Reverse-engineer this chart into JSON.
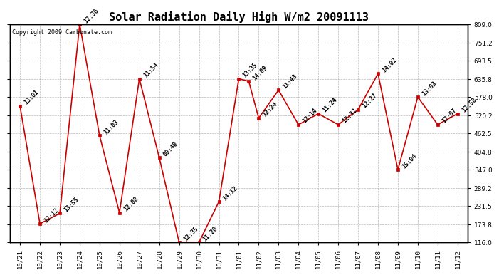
{
  "title": "Solar Radiation Daily High W/m2 20091113",
  "copyright_text": "Copyright 2009 Carbonate.com",
  "line_color": "#cc0000",
  "marker_color": "#cc0000",
  "background_color": "#ffffff",
  "plot_bg_color": "#ffffff",
  "grid_color": "#aaaaaa",
  "x_positions": [
    0,
    1,
    2,
    3,
    4,
    5,
    6,
    7,
    8,
    9,
    10,
    11,
    11.5,
    12,
    13,
    14,
    15,
    16,
    17,
    18,
    19,
    20,
    21,
    22
  ],
  "values": [
    549,
    175,
    208,
    809,
    455,
    210,
    636,
    385,
    116,
    116,
    245,
    636,
    628,
    511,
    600,
    490,
    525,
    490,
    538,
    652,
    347,
    578,
    490,
    525
  ],
  "annotations": [
    "13:01",
    "12:12",
    "13:55",
    "12:36",
    "11:03",
    "12:08",
    "11:54",
    "09:40",
    "12:35",
    "11:20",
    "14:12",
    "13:35",
    "14:09",
    "12:24",
    "11:43",
    "12:14",
    "11:24",
    "12:32",
    "12:27",
    "14:02",
    "15:04",
    "13:03",
    "12:07",
    "12:58"
  ],
  "ylim": [
    116.0,
    809.0
  ],
  "yticks": [
    116.0,
    173.8,
    231.5,
    289.2,
    347.0,
    404.8,
    462.5,
    520.2,
    578.0,
    635.8,
    693.5,
    751.2,
    809.0
  ],
  "xtick_labels": [
    "10/21",
    "10/22",
    "10/23",
    "10/24",
    "10/25",
    "10/26",
    "10/27",
    "10/28",
    "10/29",
    "10/30",
    "10/31",
    "11/01",
    "11/02",
    "11/03",
    "11/04",
    "11/05",
    "11/06",
    "11/07",
    "11/08",
    "11/09",
    "11/10",
    "11/11",
    "11/12"
  ],
  "title_fontsize": 11,
  "annotation_fontsize": 6,
  "tick_fontsize": 6.5,
  "copyright_fontsize": 6,
  "linewidth": 1.2,
  "markersize": 2.5
}
